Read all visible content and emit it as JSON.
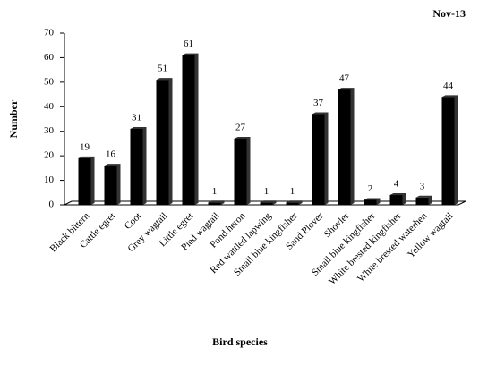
{
  "chart_data": {
    "type": "bar",
    "title": "Nov-13",
    "x_label": "Bird species",
    "y_label": "Number",
    "categories": [
      "Black bittern",
      "Cattle egret",
      "Coot",
      "Grey wagtail",
      "Little egret",
      "Pied wagtail",
      "Pond heron",
      "Red wattled lapwing",
      "Small blue kingfisher",
      "Sand Plover",
      "Shovler",
      "Small blue kingfisher",
      "White brested kingfisher",
      "White brested waterhen",
      "Yellow wagtail"
    ],
    "values": [
      19,
      16,
      31,
      51,
      61,
      1,
      27,
      1,
      1,
      37,
      47,
      2,
      4,
      3,
      44
    ],
    "color": "#000000",
    "ylim": [
      0,
      70
    ],
    "yticks": [
      0,
      10,
      20,
      30,
      40,
      50,
      60,
      70
    ]
  }
}
